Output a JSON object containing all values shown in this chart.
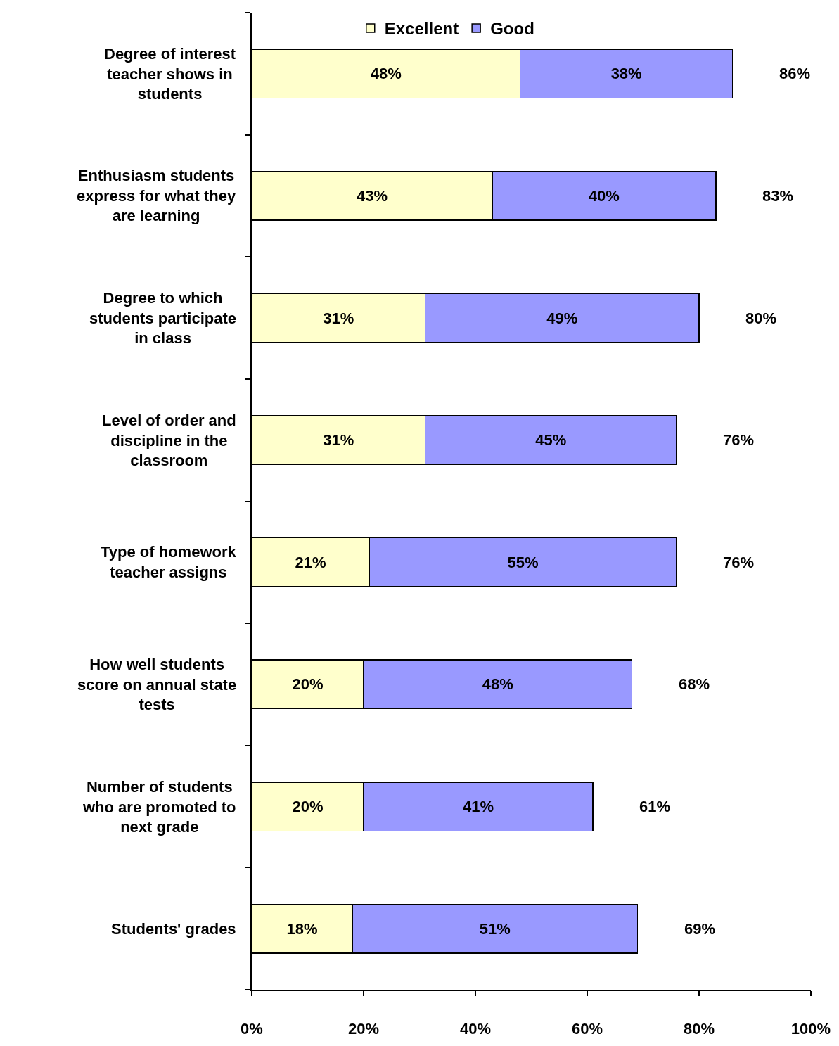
{
  "chart_data": {
    "type": "bar",
    "orientation": "horizontal",
    "stacked": true,
    "categories": [
      "Degree of interest teacher shows in students",
      "Enthusiasm students express for what they are learning",
      "Degree to which students participate in class",
      "Level of order and discipline in the classroom",
      "Type of homework teacher assigns",
      "How well students score on annual state tests",
      "Number of students who are promoted to next grade",
      "Students' grades"
    ],
    "series": [
      {
        "name": "Excellent",
        "color": "#ffffcc",
        "values": [
          48,
          43,
          31,
          31,
          21,
          20,
          20,
          18
        ],
        "value_labels": [
          "48%",
          "43%",
          "31%",
          "31%",
          "21%",
          "20%",
          "20%",
          "18%"
        ]
      },
      {
        "name": "Good",
        "color": "#9999ff",
        "values": [
          38,
          40,
          49,
          45,
          55,
          48,
          41,
          51
        ],
        "value_labels": [
          "38%",
          "40%",
          "49%",
          "45%",
          "55%",
          "48%",
          "41%",
          "51%"
        ]
      }
    ],
    "totals": [
      "86%",
      "83%",
      "80%",
      "76%",
      "76%",
      "68%",
      "61%",
      "69%"
    ],
    "xlim": [
      0,
      100
    ],
    "xticks": [
      {
        "value": 0,
        "label": "0%"
      },
      {
        "value": 20,
        "label": "20%"
      },
      {
        "value": 40,
        "label": "40%"
      },
      {
        "value": 60,
        "label": "60%"
      },
      {
        "value": 80,
        "label": "80%"
      },
      {
        "value": 100,
        "label": "100%"
      }
    ],
    "legend": "top",
    "grid": false
  }
}
